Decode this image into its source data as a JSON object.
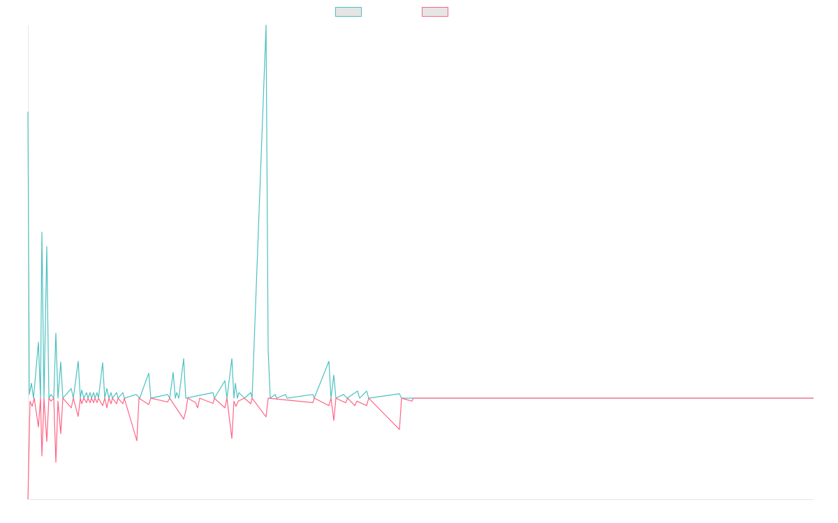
{
  "chart_data": {
    "type": "line",
    "title": "",
    "xlabel": "",
    "ylabel": "",
    "xlim": [
      0,
      1125
    ],
    "ylim": [
      -27.1,
      100
    ],
    "grid": false,
    "legend": {
      "placement": "top-center",
      "entries": [
        "",
        ""
      ]
    },
    "series": [
      {
        "name": "",
        "color": "#4bc0c0",
        "points": [
          [
            0,
            76.8
          ],
          [
            2,
            1
          ],
          [
            5,
            4
          ],
          [
            8,
            0
          ],
          [
            15,
            15
          ],
          [
            18,
            0
          ],
          [
            20,
            44.5
          ],
          [
            23,
            0
          ],
          [
            27,
            40.6
          ],
          [
            30,
            0
          ],
          [
            33,
            1
          ],
          [
            37,
            0
          ],
          [
            40,
            17.4
          ],
          [
            43,
            0
          ],
          [
            47,
            9.7
          ],
          [
            50,
            0
          ],
          [
            62,
            2.6
          ],
          [
            65,
            0
          ],
          [
            72,
            9.9
          ],
          [
            75,
            0
          ],
          [
            77,
            2.2
          ],
          [
            80,
            0
          ],
          [
            84,
            1.5
          ],
          [
            86,
            0
          ],
          [
            89,
            1.5
          ],
          [
            91,
            0
          ],
          [
            94,
            1.5
          ],
          [
            96,
            0
          ],
          [
            99,
            1.5
          ],
          [
            101,
            0
          ],
          [
            107,
            9.5
          ],
          [
            110,
            0
          ],
          [
            113,
            2.6
          ],
          [
            116,
            0
          ],
          [
            119,
            1.5
          ],
          [
            121,
            0
          ],
          [
            127,
            1.5
          ],
          [
            129,
            0
          ],
          [
            136,
            1.5
          ],
          [
            138,
            0
          ],
          [
            155,
            1
          ],
          [
            160,
            0
          ],
          [
            173,
            6.7
          ],
          [
            176,
            0
          ],
          [
            200,
            1
          ],
          [
            203,
            0
          ],
          [
            208,
            6.9
          ],
          [
            211,
            0
          ],
          [
            213,
            1.5
          ],
          [
            216,
            0
          ],
          [
            223,
            10.6
          ],
          [
            226,
            0
          ],
          [
            265,
            1.5
          ],
          [
            267,
            0
          ],
          [
            282,
            4.7
          ],
          [
            285,
            0
          ],
          [
            292,
            10.6
          ],
          [
            295,
            0
          ],
          [
            297,
            4
          ],
          [
            300,
            0
          ],
          [
            302,
            1.5
          ],
          [
            310,
            0
          ],
          [
            319,
            1.5
          ],
          [
            321,
            0
          ],
          [
            341,
            100
          ],
          [
            344,
            13
          ],
          [
            347,
            0
          ],
          [
            354,
            1
          ],
          [
            356,
            0
          ],
          [
            369,
            1
          ],
          [
            371,
            0
          ],
          [
            408,
            1
          ],
          [
            410,
            0
          ],
          [
            431,
            9.9
          ],
          [
            434,
            0
          ],
          [
            438,
            6.2
          ],
          [
            441,
            0
          ],
          [
            452,
            1
          ],
          [
            457,
            0
          ],
          [
            472,
            1.9
          ],
          [
            475,
            0
          ],
          [
            485,
            1.9
          ],
          [
            488,
            0
          ],
          [
            532,
            1.2
          ],
          [
            535,
            0
          ],
          [
            1125,
            0
          ]
        ]
      },
      {
        "name": "",
        "color": "#ff6384",
        "points": [
          [
            0,
            -27.1
          ],
          [
            3,
            -0.8
          ],
          [
            6,
            -2.2
          ],
          [
            9,
            0
          ],
          [
            15,
            -7.7
          ],
          [
            18,
            0
          ],
          [
            20,
            -15.5
          ],
          [
            23,
            0
          ],
          [
            27,
            -11.6
          ],
          [
            30,
            0
          ],
          [
            33,
            -0.8
          ],
          [
            37,
            0
          ],
          [
            40,
            -17.2
          ],
          [
            43,
            -0.8
          ],
          [
            47,
            -9.5
          ],
          [
            50,
            0
          ],
          [
            62,
            -2.6
          ],
          [
            65,
            0
          ],
          [
            72,
            -4.9
          ],
          [
            75,
            0
          ],
          [
            77,
            -1.5
          ],
          [
            80,
            0
          ],
          [
            84,
            -1.2
          ],
          [
            86,
            0
          ],
          [
            89,
            -1.2
          ],
          [
            91,
            0
          ],
          [
            94,
            -1.2
          ],
          [
            96,
            0
          ],
          [
            99,
            -1.2
          ],
          [
            101,
            0
          ],
          [
            107,
            -2
          ],
          [
            110,
            0
          ],
          [
            113,
            -2.6
          ],
          [
            116,
            0
          ],
          [
            119,
            -1.5
          ],
          [
            121,
            0
          ],
          [
            127,
            -1.5
          ],
          [
            129,
            0
          ],
          [
            136,
            -1.5
          ],
          [
            138,
            0
          ],
          [
            156,
            -11.4
          ],
          [
            159,
            0
          ],
          [
            173,
            -1.7
          ],
          [
            176,
            0
          ],
          [
            200,
            -1
          ],
          [
            203,
            0
          ],
          [
            223,
            -5.6
          ],
          [
            226,
            -3.5
          ],
          [
            229,
            0
          ],
          [
            240,
            -1.2
          ],
          [
            243,
            -2.6
          ],
          [
            246,
            0
          ],
          [
            265,
            -1.4
          ],
          [
            267,
            0
          ],
          [
            282,
            -2.6
          ],
          [
            285,
            0
          ],
          [
            292,
            -10.8
          ],
          [
            295,
            -0.8
          ],
          [
            298,
            -2.2
          ],
          [
            301,
            -0.8
          ],
          [
            310,
            0
          ],
          [
            319,
            -1.5
          ],
          [
            321,
            0
          ],
          [
            341,
            -5
          ],
          [
            344,
            0
          ],
          [
            408,
            -1.2
          ],
          [
            410,
            0
          ],
          [
            431,
            -2
          ],
          [
            434,
            0
          ],
          [
            438,
            -6
          ],
          [
            441,
            0
          ],
          [
            450,
            -0.8
          ],
          [
            455,
            -1.2
          ],
          [
            458,
            0
          ],
          [
            468,
            -2
          ],
          [
            471,
            -0.8
          ],
          [
            485,
            -2
          ],
          [
            488,
            0
          ],
          [
            532,
            -8.4
          ],
          [
            535,
            0
          ],
          [
            550,
            -0.8
          ],
          [
            552,
            0
          ],
          [
            1125,
            0
          ]
        ]
      }
    ]
  }
}
